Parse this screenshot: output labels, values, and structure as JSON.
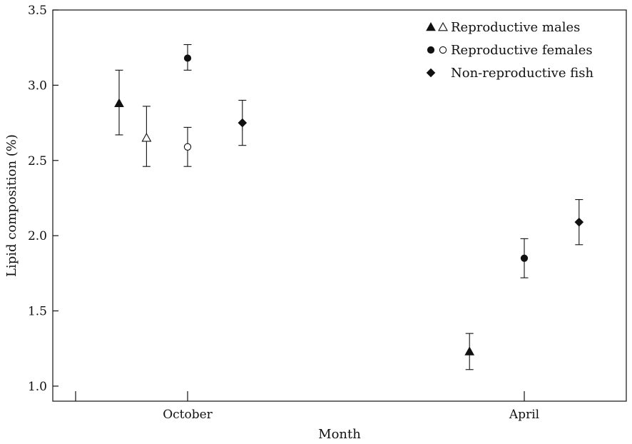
{
  "chart_data": {
    "type": "scatter",
    "title": "",
    "xlabel": "Month",
    "ylabel": "Lipid composition (%)",
    "categories": [
      "October",
      "April"
    ],
    "ylim": [
      0.9,
      3.5
    ],
    "y_ticks": [
      "1.0",
      "1.5",
      "2.0",
      "2.5",
      "3.0",
      "3.5"
    ],
    "error_bars": true,
    "legend": {
      "position": "top-right",
      "entries": [
        {
          "label": "Reproductive males",
          "markers": [
            "triangle-filled",
            "triangle-open"
          ]
        },
        {
          "label": "Reproductive females",
          "markers": [
            "circle-filled",
            "circle-open"
          ]
        },
        {
          "label": "Non-reproductive fish",
          "markers": [
            "diamond-filled"
          ]
        }
      ]
    },
    "points": [
      {
        "group": "Reproductive males",
        "marker": "triangle-filled",
        "x": "October",
        "offset": -1,
        "y": 2.88,
        "err_low": 2.67,
        "err_high": 3.1
      },
      {
        "group": "Reproductive males",
        "marker": "triangle-open",
        "x": "October",
        "offset": -0.6,
        "y": 2.65,
        "err_low": 2.46,
        "err_high": 2.86
      },
      {
        "group": "Reproductive females",
        "marker": "circle-filled",
        "x": "October",
        "offset": 0,
        "y": 3.18,
        "err_low": 3.1,
        "err_high": 3.27
      },
      {
        "group": "Reproductive females",
        "marker": "circle-open",
        "x": "October",
        "offset": 0,
        "y": 2.59,
        "err_low": 2.46,
        "err_high": 2.72
      },
      {
        "group": "Non-reproductive fish",
        "marker": "diamond-filled",
        "x": "October",
        "offset": 0.8,
        "y": 2.75,
        "err_low": 2.6,
        "err_high": 2.9
      },
      {
        "group": "Reproductive males",
        "marker": "triangle-filled",
        "x": "April",
        "offset": -0.8,
        "y": 1.23,
        "err_low": 1.11,
        "err_high": 1.35
      },
      {
        "group": "Reproductive females",
        "marker": "circle-filled",
        "x": "April",
        "offset": 0,
        "y": 1.85,
        "err_low": 1.72,
        "err_high": 1.98
      },
      {
        "group": "Non-reproductive fish",
        "marker": "diamond-filled",
        "x": "April",
        "offset": 0.8,
        "y": 2.09,
        "err_low": 1.94,
        "err_high": 2.24
      }
    ]
  }
}
